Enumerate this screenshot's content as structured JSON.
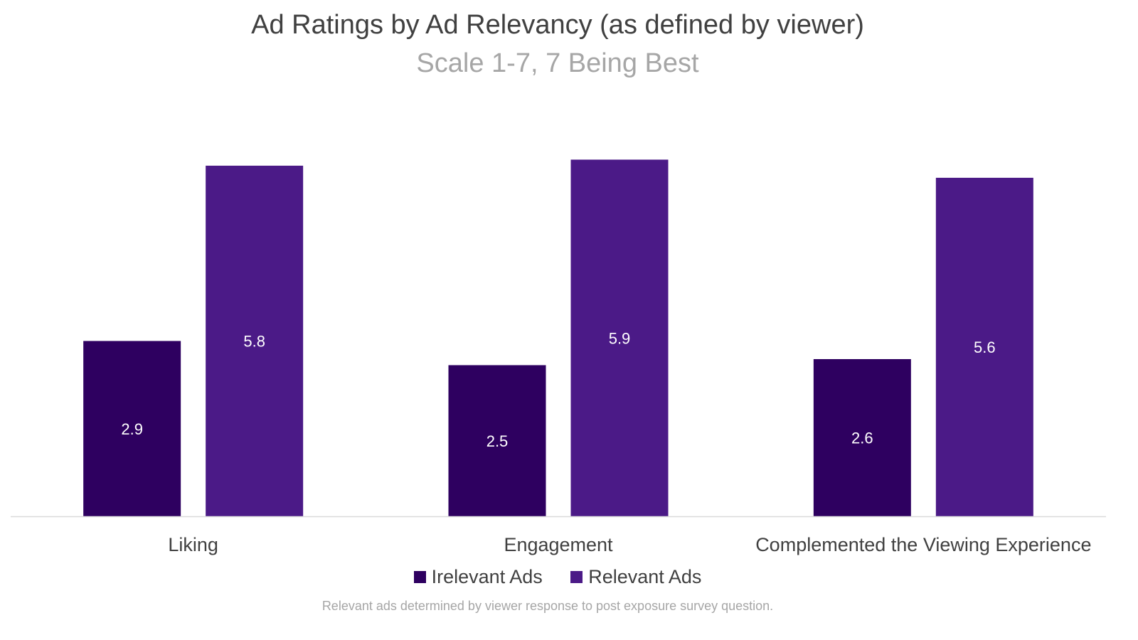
{
  "chart_data": {
    "type": "bar",
    "title": "Ad Ratings by Ad Relevancy (as defined by viewer)",
    "subtitle": "Scale 1-7, 7 Being Best",
    "categories": [
      "Liking",
      "Engagement",
      "Complemented the Viewing Experience"
    ],
    "series": [
      {
        "name": "Irelevant Ads",
        "values": [
          2.9,
          2.5,
          2.6
        ],
        "color": "#2e0060"
      },
      {
        "name": "Relevant Ads",
        "values": [
          5.8,
          5.9,
          5.6
        ],
        "color": "#4b1a87"
      }
    ],
    "ylim": [
      0,
      7
    ],
    "grid": false,
    "legend": "bottom",
    "footnote": "Relevant ads determined by viewer response to post exposure survey question."
  }
}
